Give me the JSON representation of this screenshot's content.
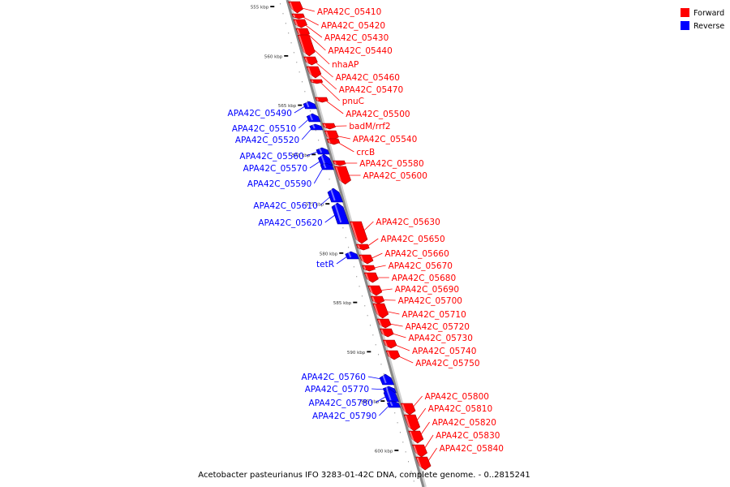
{
  "caption": "Acetobacter pasteurianus IFO 3283-01-42C DNA, complete genome. - 0..2815241",
  "colors": {
    "forward": "#ff0000",
    "reverse": "#0000ff",
    "backbone": "#888888"
  },
  "legend": [
    {
      "label": "Forward",
      "strand": "forward"
    },
    {
      "label": "Reverse",
      "strand": "reverse"
    }
  ],
  "ticks": [
    {
      "kbp": 555,
      "label": "555 kbp"
    },
    {
      "kbp": 560,
      "label": "560 kbp"
    },
    {
      "kbp": 565,
      "label": "565 kbp"
    },
    {
      "kbp": 570,
      "label": "570 kbp"
    },
    {
      "kbp": 575,
      "label": "575 kbp"
    },
    {
      "kbp": 580,
      "label": "580 kbp"
    },
    {
      "kbp": 585,
      "label": "585 kbp"
    },
    {
      "kbp": 590,
      "label": "590 kbp"
    },
    {
      "kbp": 595,
      "label": "595 kbp"
    },
    {
      "kbp": 600,
      "label": "600 kbp"
    }
  ],
  "genes": [
    {
      "label": "APA42C_05410",
      "strand": "forward"
    },
    {
      "label": "APA42C_05420",
      "strand": "forward"
    },
    {
      "label": "APA42C_05430",
      "strand": "forward"
    },
    {
      "label": "APA42C_05440",
      "strand": "forward"
    },
    {
      "label": "nhaAP",
      "strand": "forward"
    },
    {
      "label": "APA42C_05460",
      "strand": "forward"
    },
    {
      "label": "APA42C_05470",
      "strand": "forward"
    },
    {
      "label": "pnuC",
      "strand": "forward"
    },
    {
      "label": "APA42C_05490",
      "strand": "reverse"
    },
    {
      "label": "APA42C_05500",
      "strand": "forward"
    },
    {
      "label": "APA42C_05510",
      "strand": "reverse"
    },
    {
      "label": "badM/rrf2",
      "strand": "forward"
    },
    {
      "label": "APA42C_05520",
      "strand": "reverse"
    },
    {
      "label": "APA42C_05540",
      "strand": "forward"
    },
    {
      "label": "crcB",
      "strand": "forward"
    },
    {
      "label": "APA42C_05560",
      "strand": "reverse"
    },
    {
      "label": "APA42C_05570",
      "strand": "reverse"
    },
    {
      "label": "APA42C_05580",
      "strand": "forward"
    },
    {
      "label": "APA42C_05590",
      "strand": "reverse"
    },
    {
      "label": "APA42C_05600",
      "strand": "forward"
    },
    {
      "label": "APA42C_05610",
      "strand": "reverse"
    },
    {
      "label": "APA42C_05620",
      "strand": "reverse"
    },
    {
      "label": "APA42C_05630",
      "strand": "forward"
    },
    {
      "label": "APA42C_05650",
      "strand": "forward"
    },
    {
      "label": "APA42C_05660",
      "strand": "forward"
    },
    {
      "label": "tetR",
      "strand": "reverse"
    },
    {
      "label": "APA42C_05670",
      "strand": "forward"
    },
    {
      "label": "APA42C_05680",
      "strand": "forward"
    },
    {
      "label": "APA42C_05690",
      "strand": "forward"
    },
    {
      "label": "APA42C_05700",
      "strand": "forward"
    },
    {
      "label": "APA42C_05710",
      "strand": "forward"
    },
    {
      "label": "APA42C_05720",
      "strand": "forward"
    },
    {
      "label": "APA42C_05730",
      "strand": "forward"
    },
    {
      "label": "APA42C_05740",
      "strand": "forward"
    },
    {
      "label": "APA42C_05750",
      "strand": "forward"
    },
    {
      "label": "APA42C_05760",
      "strand": "reverse"
    },
    {
      "label": "APA42C_05770",
      "strand": "reverse"
    },
    {
      "label": "APA42C_05780",
      "strand": "reverse"
    },
    {
      "label": "APA42C_05790",
      "strand": "reverse"
    },
    {
      "label": "APA42C_05800",
      "strand": "forward"
    },
    {
      "label": "APA42C_05810",
      "strand": "forward"
    },
    {
      "label": "APA42C_05820",
      "strand": "forward"
    },
    {
      "label": "APA42C_05830",
      "strand": "forward"
    },
    {
      "label": "APA42C_05840",
      "strand": "forward"
    }
  ]
}
